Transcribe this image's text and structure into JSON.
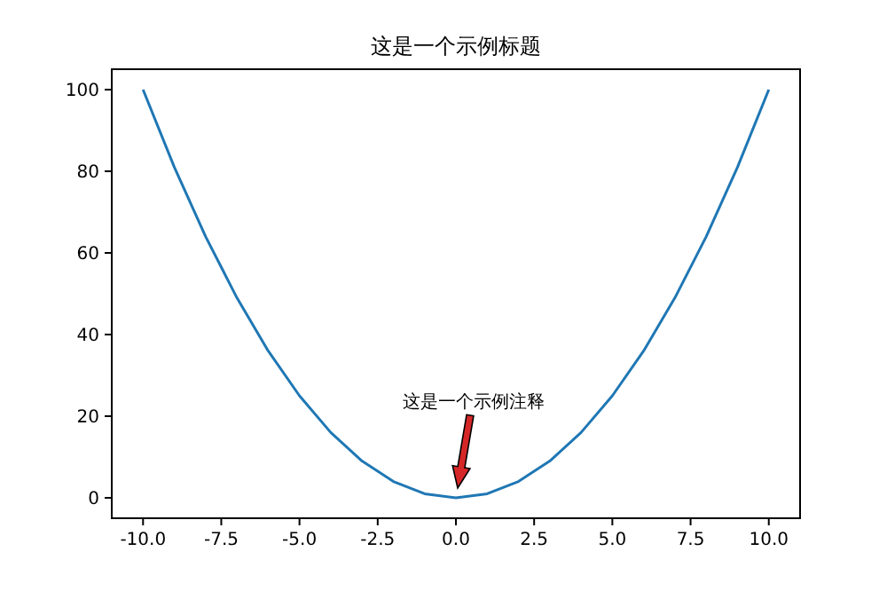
{
  "chart_data": {
    "type": "line",
    "title": "这是一个示例标题",
    "x": [
      -10,
      -9,
      -8,
      -7,
      -6,
      -5,
      -4,
      -3,
      -2,
      -1,
      0,
      1,
      2,
      3,
      4,
      5,
      6,
      7,
      8,
      9,
      10
    ],
    "series": [
      {
        "color": "#1f77b4",
        "values": [
          100,
          81,
          64,
          49,
          36,
          25,
          16,
          9,
          4,
          1,
          0,
          1,
          4,
          9,
          16,
          25,
          36,
          49,
          64,
          81,
          100
        ]
      }
    ],
    "xlim": [
      -11,
      11
    ],
    "ylim": [
      -5,
      105
    ],
    "xticks": [
      {
        "value": -10,
        "label": "-10.0"
      },
      {
        "value": -7.5,
        "label": "-7.5"
      },
      {
        "value": -5,
        "label": "-5.0"
      },
      {
        "value": -2.5,
        "label": "-2.5"
      },
      {
        "value": 0,
        "label": "0.0"
      },
      {
        "value": 2.5,
        "label": "2.5"
      },
      {
        "value": 5,
        "label": "5.0"
      },
      {
        "value": 7.5,
        "label": "7.5"
      },
      {
        "value": 10,
        "label": "10.0"
      }
    ],
    "yticks": [
      0,
      20,
      40,
      60,
      80,
      100
    ],
    "annotations": [
      "这是一个示例注释"
    ],
    "marker": "none",
    "line_style": "solid"
  }
}
